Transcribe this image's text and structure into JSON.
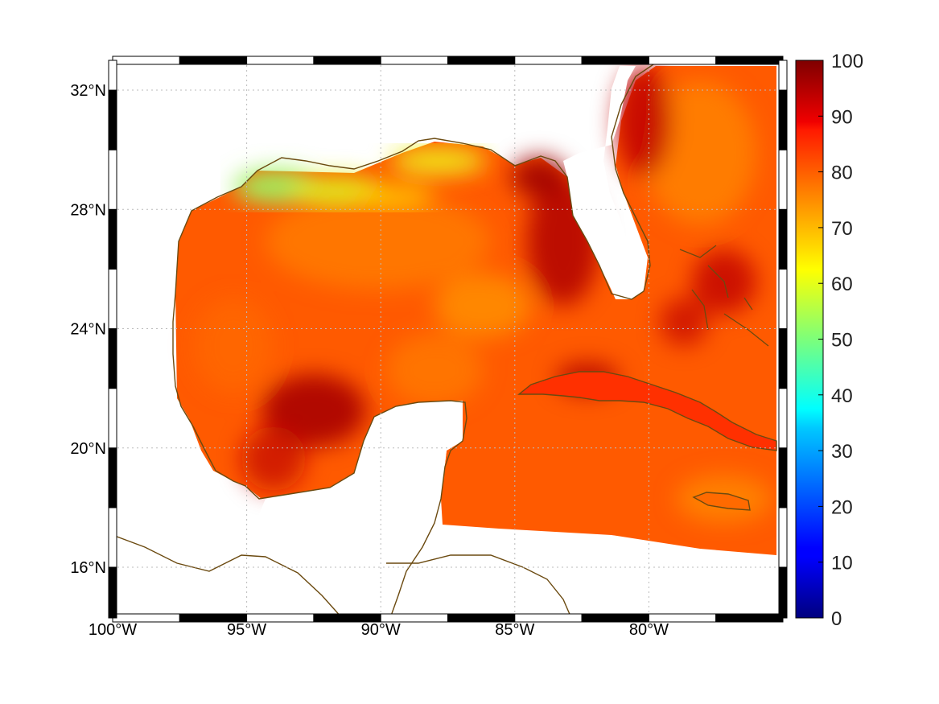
{
  "map": {
    "lon_ticks": [
      {
        "value": -100,
        "label": "100°W"
      },
      {
        "value": -95,
        "label": "95°W"
      },
      {
        "value": -90,
        "label": "90°W"
      },
      {
        "value": -85,
        "label": "85°W"
      },
      {
        "value": -80,
        "label": "80°W"
      }
    ],
    "lat_ticks": [
      {
        "value": 32,
        "label": "32°N"
      },
      {
        "value": 28,
        "label": "28°N"
      },
      {
        "value": 24,
        "label": "24°N"
      },
      {
        "value": 20,
        "label": "20°N"
      },
      {
        "value": 16,
        "label": "16°N"
      }
    ],
    "lon_range": [
      -100,
      -75
    ],
    "lat_range": [
      14.3,
      33.0
    ],
    "grid": true,
    "coastline_color": "#6b4a10"
  },
  "colorbar": {
    "min": 0,
    "max": 100,
    "ticks": [
      {
        "value": 100,
        "label": "100"
      },
      {
        "value": 90,
        "label": "90"
      },
      {
        "value": 80,
        "label": "80"
      },
      {
        "value": 70,
        "label": "70"
      },
      {
        "value": 60,
        "label": "60"
      },
      {
        "value": 50,
        "label": "50"
      },
      {
        "value": 40,
        "label": "40"
      },
      {
        "value": 30,
        "label": "30"
      },
      {
        "value": 20,
        "label": "20"
      },
      {
        "value": 10,
        "label": "10"
      },
      {
        "value": 0,
        "label": "0"
      }
    ],
    "colormap": "jet"
  }
}
